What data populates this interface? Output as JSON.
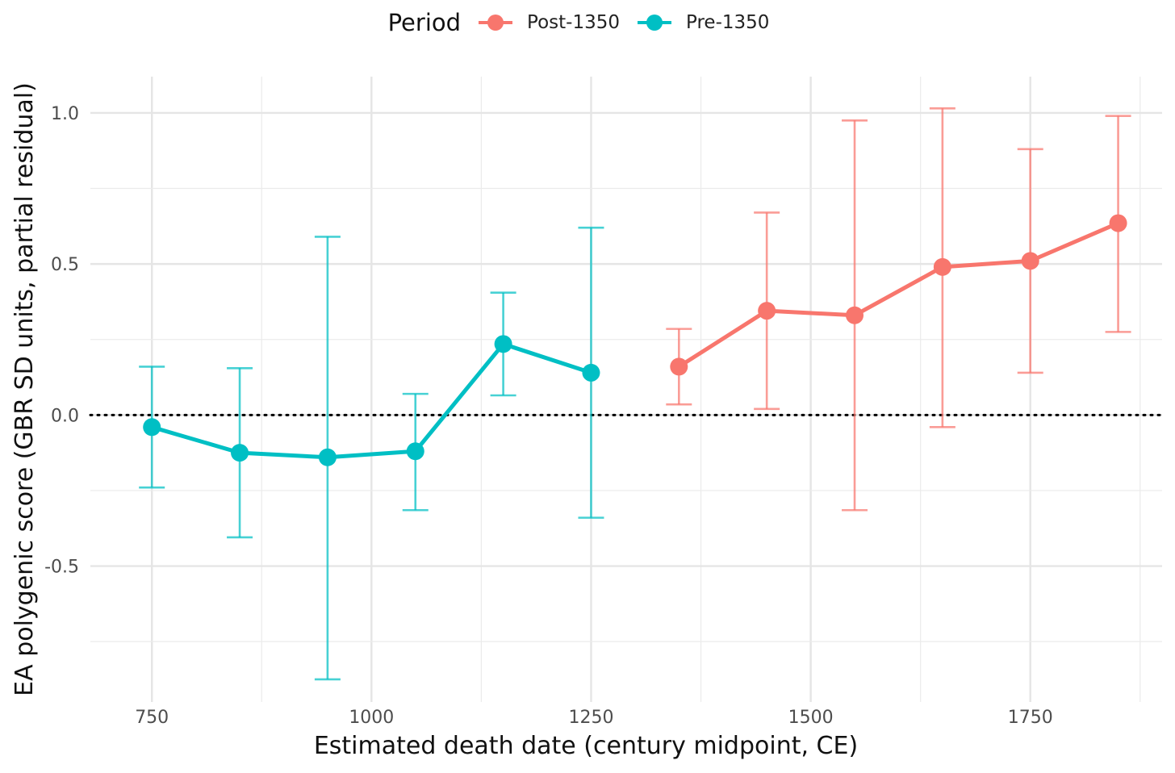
{
  "legend": {
    "title": "Period",
    "items": [
      {
        "label": "Post-1350",
        "color": "#F8766D"
      },
      {
        "label": "Pre-1350",
        "color": "#00BFC4"
      }
    ]
  },
  "chart_data": {
    "type": "line",
    "xlabel": "Estimated death date (century midpoint, CE)",
    "ylabel": "EA polygenic score (GBR SD units, partial residual)",
    "xlim": [
      680,
      1900
    ],
    "ylim": [
      -0.95,
      1.12
    ],
    "x_ticks": [
      {
        "value": 750,
        "label": "750"
      },
      {
        "value": 1000,
        "label": "1000"
      },
      {
        "value": 1250,
        "label": "1250"
      },
      {
        "value": 1500,
        "label": "1500"
      },
      {
        "value": 1750,
        "label": "1750"
      }
    ],
    "y_ticks": [
      {
        "value": 1.0,
        "label": "1.0"
      },
      {
        "value": 0.5,
        "label": "0.5"
      },
      {
        "value": 0.0,
        "label": "0.0"
      },
      {
        "value": -0.5,
        "label": "-0.5"
      }
    ],
    "grid": true,
    "reference_line": {
      "y": 0,
      "style": "dotted"
    },
    "legend_position": "top",
    "series": [
      {
        "name": "Pre-1350",
        "color": "#00BFC4",
        "points": [
          {
            "x": 750,
            "y": -0.04,
            "lower": -0.24,
            "upper": 0.16
          },
          {
            "x": 850,
            "y": -0.125,
            "lower": -0.405,
            "upper": 0.155
          },
          {
            "x": 950,
            "y": -0.14,
            "lower": -0.875,
            "upper": 0.59
          },
          {
            "x": 1050,
            "y": -0.12,
            "lower": -0.315,
            "upper": 0.07
          },
          {
            "x": 1150,
            "y": 0.235,
            "lower": 0.065,
            "upper": 0.405
          },
          {
            "x": 1250,
            "y": 0.14,
            "lower": -0.34,
            "upper": 0.62
          }
        ]
      },
      {
        "name": "Post-1350",
        "color": "#F8766D",
        "points": [
          {
            "x": 1350,
            "y": 0.16,
            "lower": 0.035,
            "upper": 0.285
          },
          {
            "x": 1450,
            "y": 0.345,
            "lower": 0.02,
            "upper": 0.67
          },
          {
            "x": 1550,
            "y": 0.33,
            "lower": -0.315,
            "upper": 0.975
          },
          {
            "x": 1650,
            "y": 0.49,
            "lower": -0.04,
            "upper": 1.015
          },
          {
            "x": 1750,
            "y": 0.51,
            "lower": 0.14,
            "upper": 0.88
          },
          {
            "x": 1850,
            "y": 0.635,
            "lower": 0.275,
            "upper": 0.99
          }
        ]
      }
    ]
  }
}
